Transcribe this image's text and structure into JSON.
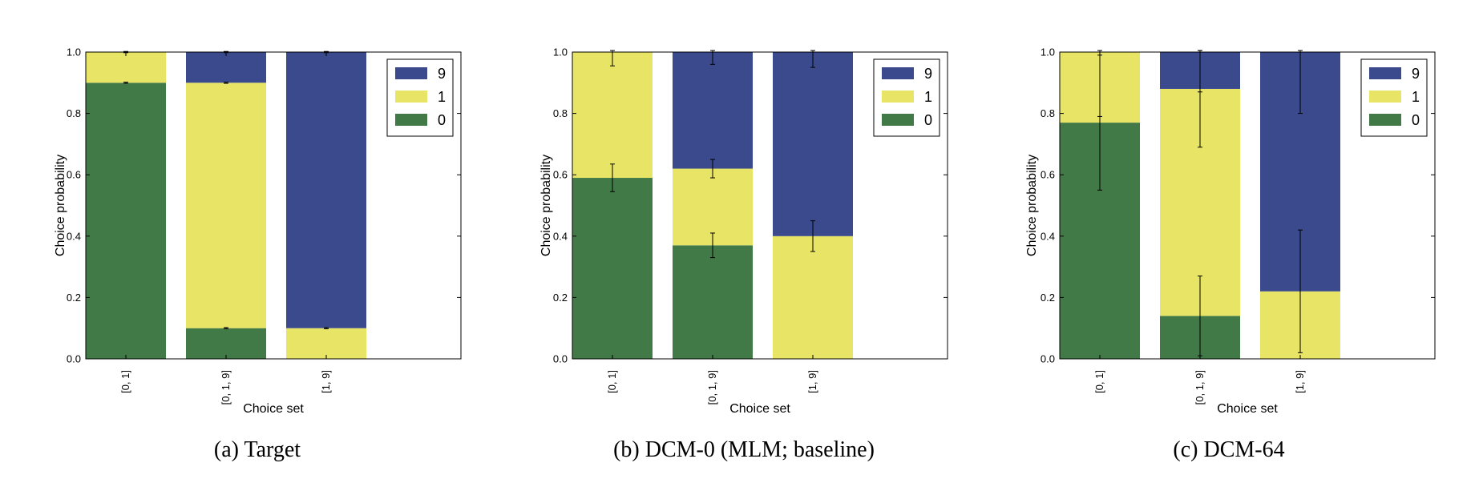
{
  "colors": {
    "c9": "#3a4a8c",
    "c1": "#e8e466",
    "c0": "#417a46",
    "error_bar": "#000000"
  },
  "chart_data": [
    {
      "type": "bar",
      "stacked": true,
      "caption": "(a) Target",
      "xlabel": "Choice set",
      "ylabel": "Choice probability",
      "ylim": [
        0,
        1
      ],
      "yticks": [
        "0.0",
        "0.2",
        "0.4",
        "0.6",
        "0.8",
        "1.0"
      ],
      "categories": [
        "[0, 1]",
        "[0, 1, 9]",
        "[1, 9]"
      ],
      "legend": [
        "9",
        "1",
        "0"
      ],
      "legend_position": "top-right",
      "series": [
        {
          "name": "0",
          "values": [
            0.9,
            0.1,
            0.0
          ],
          "err": [
            0.002,
            0.002,
            0
          ]
        },
        {
          "name": "1",
          "values": [
            0.1,
            0.8,
            0.1
          ],
          "err": [
            0.002,
            0.002,
            0.002
          ]
        },
        {
          "name": "9",
          "values": [
            0.0,
            0.1,
            0.9
          ],
          "err": [
            0,
            0.002,
            0.002
          ]
        }
      ]
    },
    {
      "type": "bar",
      "stacked": true,
      "caption": "(b) DCM-0 (MLM; baseline)",
      "xlabel": "Choice set",
      "ylabel": "Choice probability",
      "ylim": [
        0,
        1
      ],
      "yticks": [
        "0.0",
        "0.2",
        "0.4",
        "0.6",
        "0.8",
        "1.0"
      ],
      "categories": [
        "[0, 1]",
        "[0, 1, 9]",
        "[1, 9]"
      ],
      "legend": [
        "9",
        "1",
        "0"
      ],
      "legend_position": "top-right",
      "series": [
        {
          "name": "0",
          "values": [
            0.59,
            0.37,
            0.0
          ],
          "err": [
            0.045,
            0.04,
            0
          ]
        },
        {
          "name": "1",
          "values": [
            0.41,
            0.25,
            0.4
          ],
          "err": [
            0.045,
            0.03,
            0.05
          ]
        },
        {
          "name": "9",
          "values": [
            0.0,
            0.38,
            0.6
          ],
          "err": [
            0,
            0.04,
            0.05
          ]
        }
      ]
    },
    {
      "type": "bar",
      "stacked": true,
      "caption": "(c) DCM-64",
      "xlabel": "Choice set",
      "ylabel": "Choice probability",
      "ylim": [
        0,
        1
      ],
      "yticks": [
        "0.0",
        "0.2",
        "0.4",
        "0.6",
        "0.8",
        "1.0"
      ],
      "categories": [
        "[0, 1]",
        "[0, 1, 9]",
        "[1, 9]"
      ],
      "legend": [
        "9",
        "1",
        "0"
      ],
      "legend_position": "top-right",
      "series": [
        {
          "name": "0",
          "values": [
            0.77,
            0.14,
            0.0
          ],
          "err": [
            0.22,
            0.13,
            0
          ]
        },
        {
          "name": "1",
          "values": [
            0.23,
            0.74,
            0.22
          ],
          "err": [
            0.21,
            0.19,
            0.2
          ]
        },
        {
          "name": "9",
          "values": [
            0.0,
            0.12,
            0.78
          ],
          "err": [
            0,
            0.13,
            0.2
          ]
        }
      ]
    }
  ]
}
